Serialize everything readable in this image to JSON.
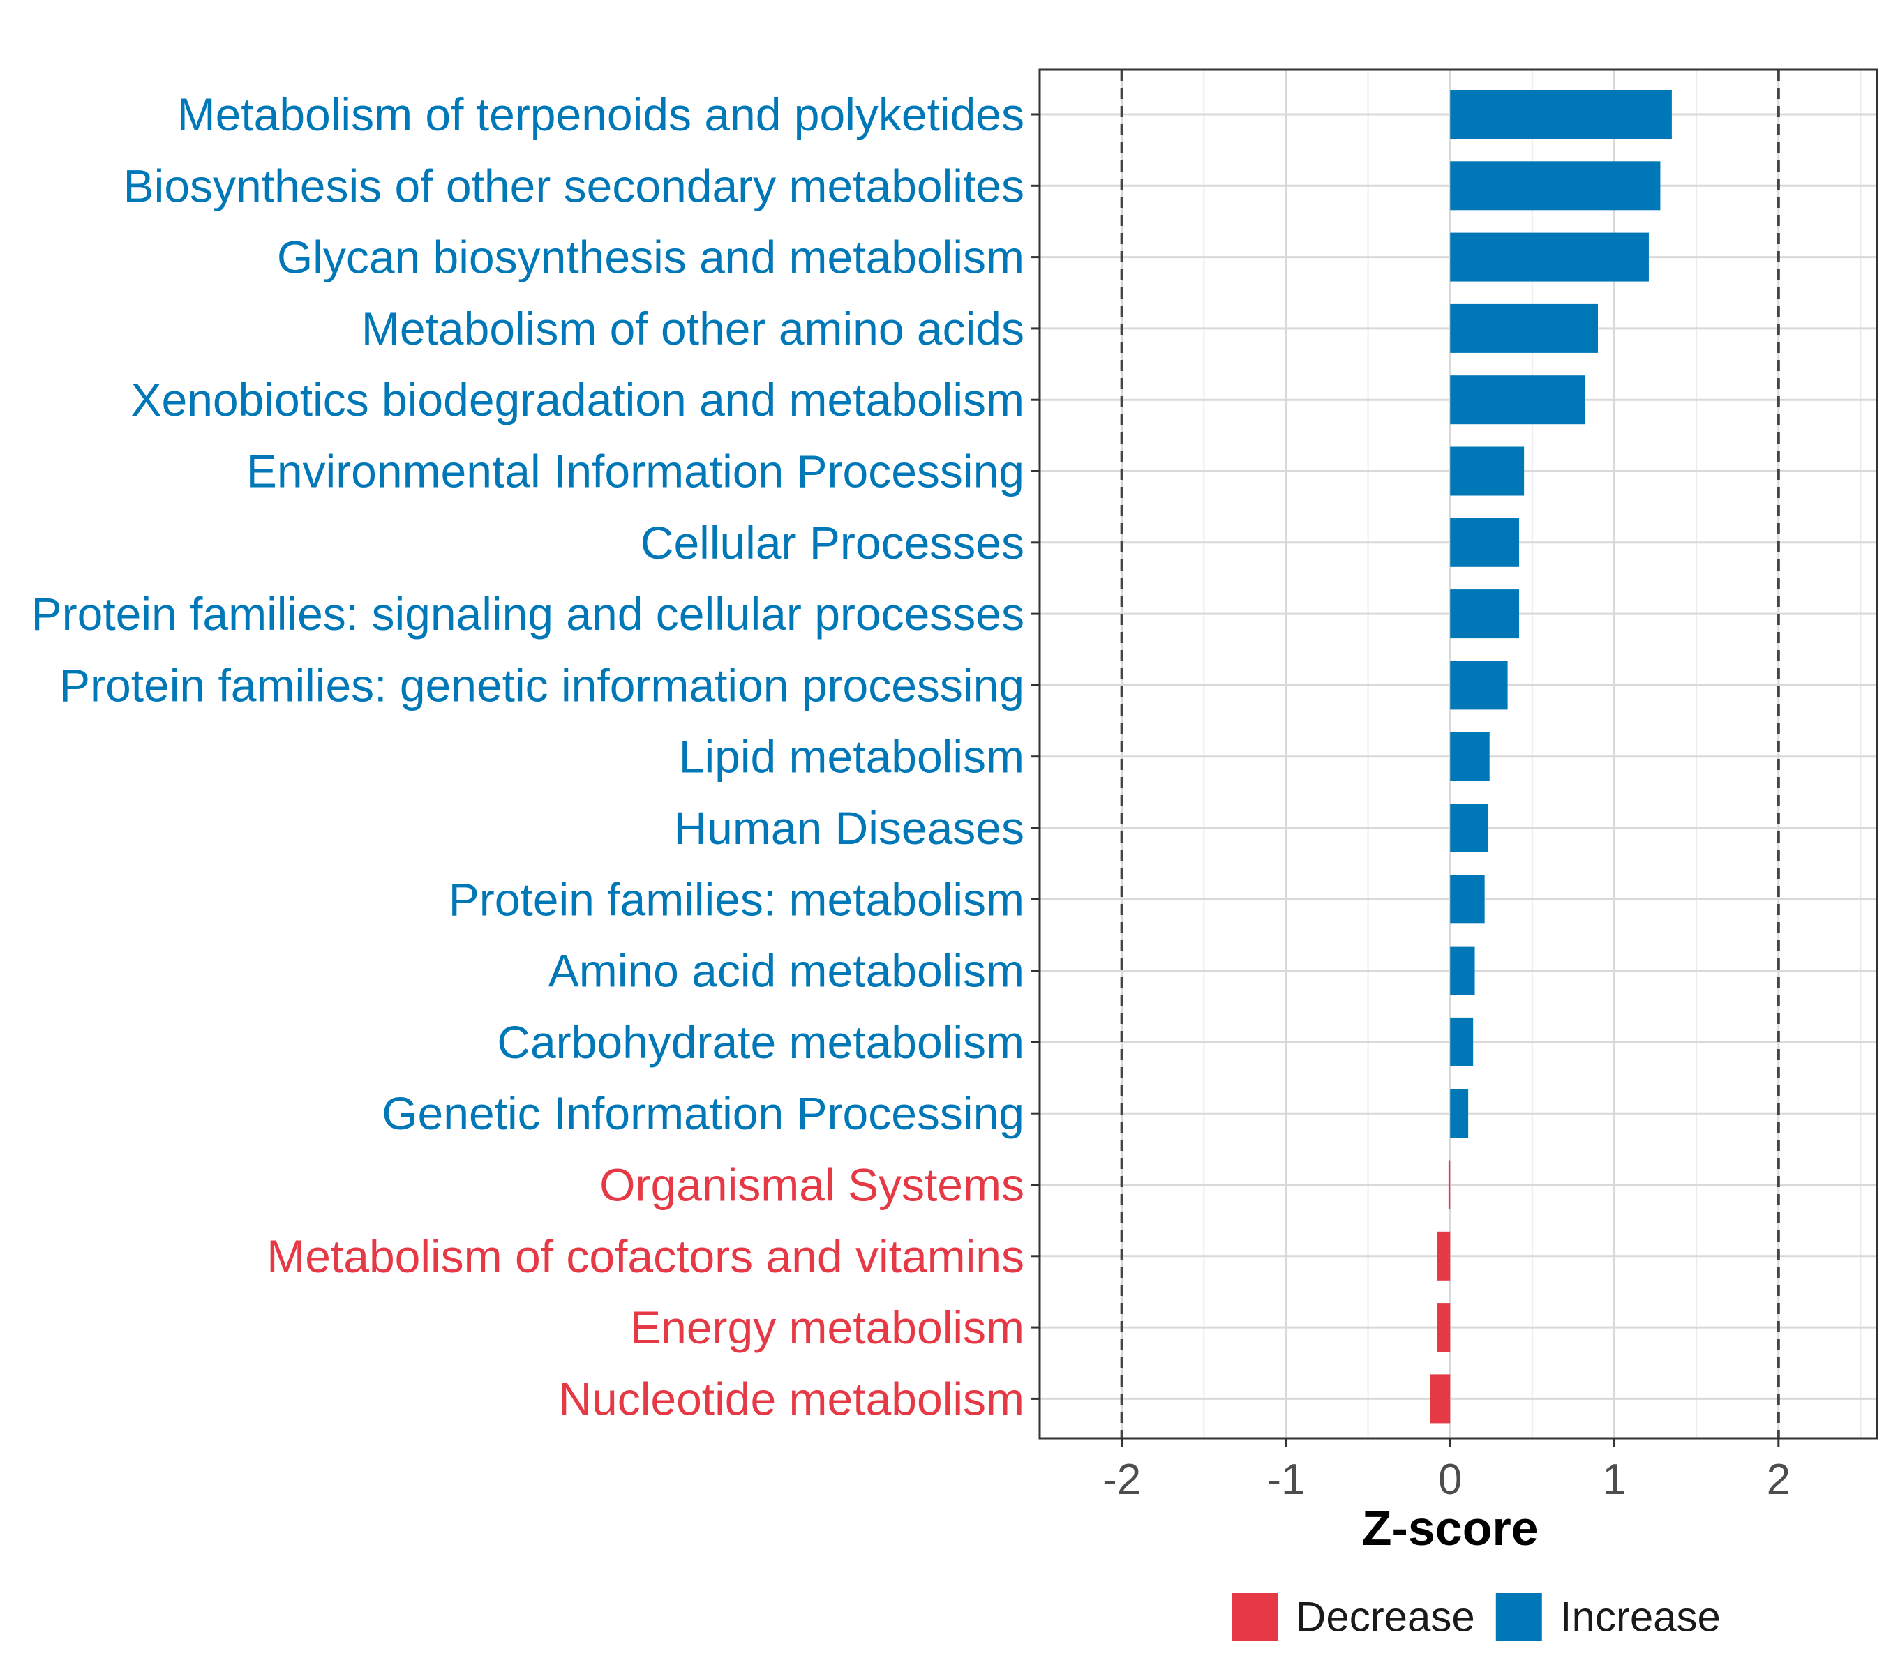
{
  "chart_data": {
    "type": "bar",
    "orientation": "horizontal",
    "xlabel": "Z-score",
    "xlim": [
      -2.5,
      2.6
    ],
    "xticks": [
      -2,
      -1,
      0,
      1,
      2
    ],
    "xtick_labels": [
      "-2",
      "-1",
      "0",
      "1",
      "2"
    ],
    "threshold_lines": [
      -2,
      2
    ],
    "grid": true,
    "legend_position": "bottom",
    "legend": [
      {
        "label": "Decrease",
        "color": "#e63946"
      },
      {
        "label": "Increase",
        "color": "#0077b6"
      }
    ],
    "categories": [
      "Metabolism of terpenoids and polyketides",
      "Biosynthesis of other secondary metabolites",
      "Glycan biosynthesis and metabolism",
      "Metabolism of other amino acids",
      "Xenobiotics biodegradation and metabolism",
      "Environmental Information Processing",
      "Cellular Processes",
      "Protein families: signaling and cellular processes",
      "Protein families: genetic information processing",
      "Lipid metabolism",
      "Human Diseases",
      "Protein families: metabolism",
      "Amino acid metabolism",
      "Carbohydrate metabolism",
      "Genetic Information Processing",
      "Organismal Systems",
      "Metabolism of cofactors and vitamins",
      "Energy metabolism",
      "Nucleotide metabolism"
    ],
    "values": [
      1.35,
      1.28,
      1.21,
      0.9,
      0.82,
      0.45,
      0.42,
      0.42,
      0.35,
      0.24,
      0.23,
      0.21,
      0.15,
      0.14,
      0.11,
      -0.01,
      -0.08,
      -0.08,
      -0.12
    ],
    "groups": [
      "Increase",
      "Increase",
      "Increase",
      "Increase",
      "Increase",
      "Increase",
      "Increase",
      "Increase",
      "Increase",
      "Increase",
      "Increase",
      "Increase",
      "Increase",
      "Increase",
      "Increase",
      "Decrease",
      "Decrease",
      "Decrease",
      "Decrease"
    ]
  }
}
